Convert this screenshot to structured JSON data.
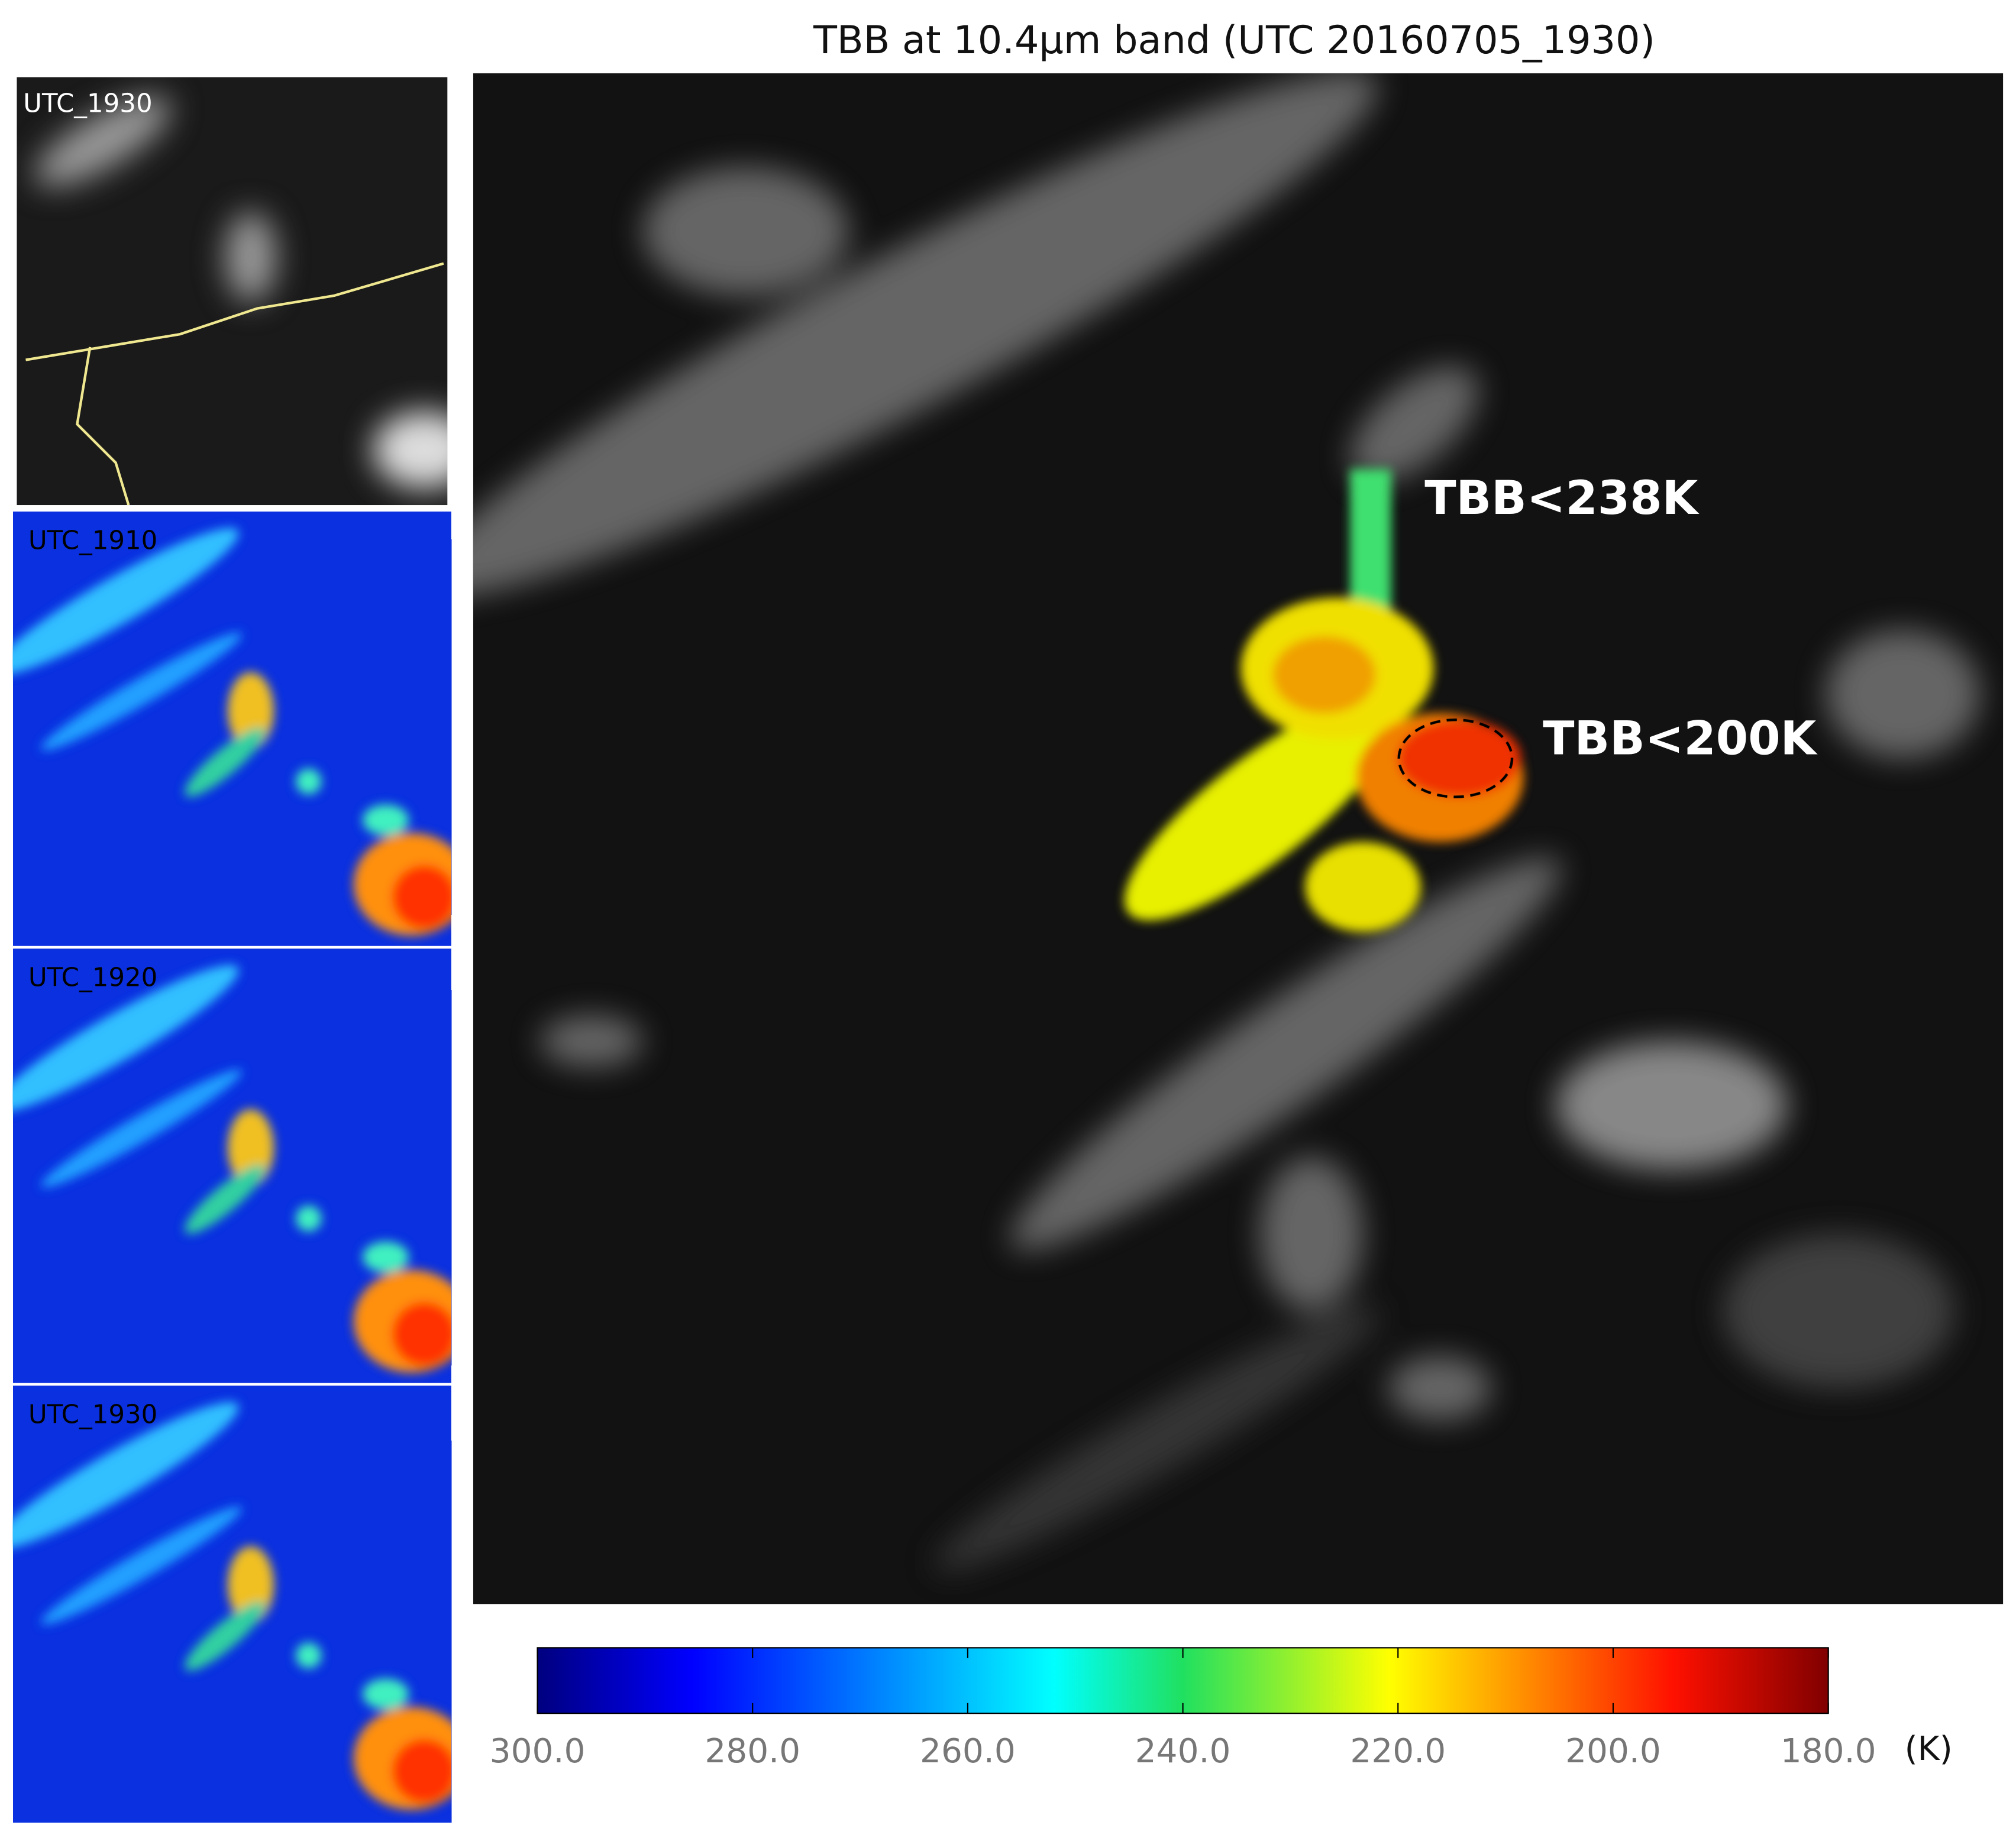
{
  "title": "TBB at 10.4µm band (UTC 20160705_1930)",
  "panels": [
    {
      "label": "UTC_1930"
    },
    {
      "label": "UTC_1910"
    },
    {
      "label": "UTC_1920"
    },
    {
      "label": "UTC_1930"
    }
  ],
  "annotations": [
    "TBB<238K",
    "TBB<200K"
  ],
  "colorbar": {
    "range": [
      300,
      180
    ],
    "unit": "(K)",
    "ticks": [
      {
        "value": 300,
        "label": "300.0"
      },
      {
        "value": 280,
        "label": "280.0"
      },
      {
        "value": 260,
        "label": "260.0"
      },
      {
        "value": 240,
        "label": "240.0"
      },
      {
        "value": 220,
        "label": "220.0"
      },
      {
        "value": 200,
        "label": "200.0"
      },
      {
        "value": 180,
        "label": "180.0"
      }
    ]
  }
}
